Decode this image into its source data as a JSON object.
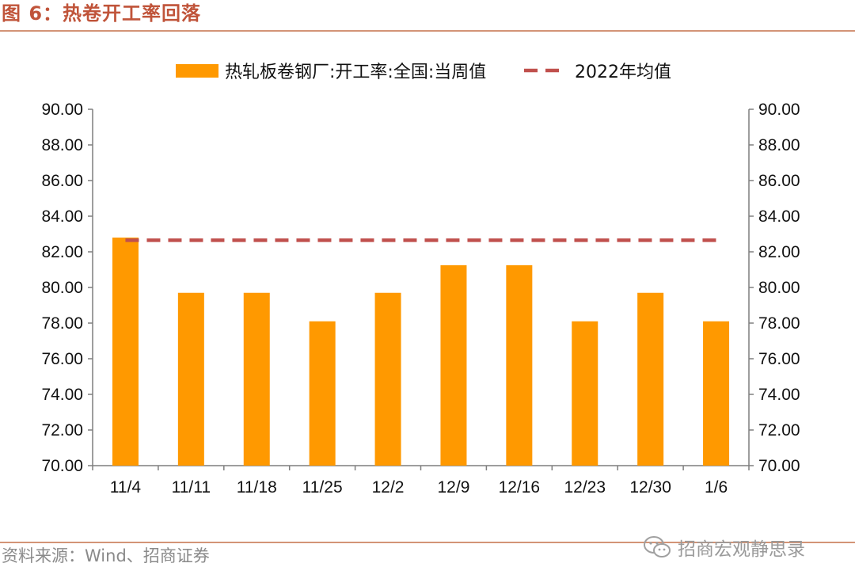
{
  "figure": {
    "title": "图 6：热卷开工率回落",
    "source": "资料来源：Wind、招商证券",
    "watermark": "招商宏观静思录"
  },
  "colors": {
    "bar": "#ff9900",
    "avg_line": "#c0504d",
    "accent": "#c0543a",
    "rule": "#d39477"
  },
  "chart_data": {
    "type": "bar",
    "categories": [
      "11/4",
      "11/11",
      "11/18",
      "11/25",
      "12/2",
      "12/9",
      "12/16",
      "12/23",
      "12/30",
      "1/6"
    ],
    "series": [
      {
        "name": "热轧板卷钢厂:开工率:全国:当周值",
        "type": "bar",
        "values": [
          82.8,
          79.7,
          79.7,
          78.1,
          79.7,
          81.25,
          81.25,
          78.1,
          79.7,
          78.1
        ]
      },
      {
        "name": "2022年均值",
        "type": "line",
        "style": "dashed",
        "values": [
          82.65,
          82.65,
          82.65,
          82.65,
          82.65,
          82.65,
          82.65,
          82.65,
          82.65,
          82.65
        ]
      }
    ],
    "ylim": [
      70,
      90
    ],
    "y2lim": [
      70,
      90
    ],
    "ytick_step": 2,
    "ytick_format": "0.00",
    "legend_position": "top-center",
    "grid": false,
    "xlabel": "",
    "ylabel": ""
  }
}
